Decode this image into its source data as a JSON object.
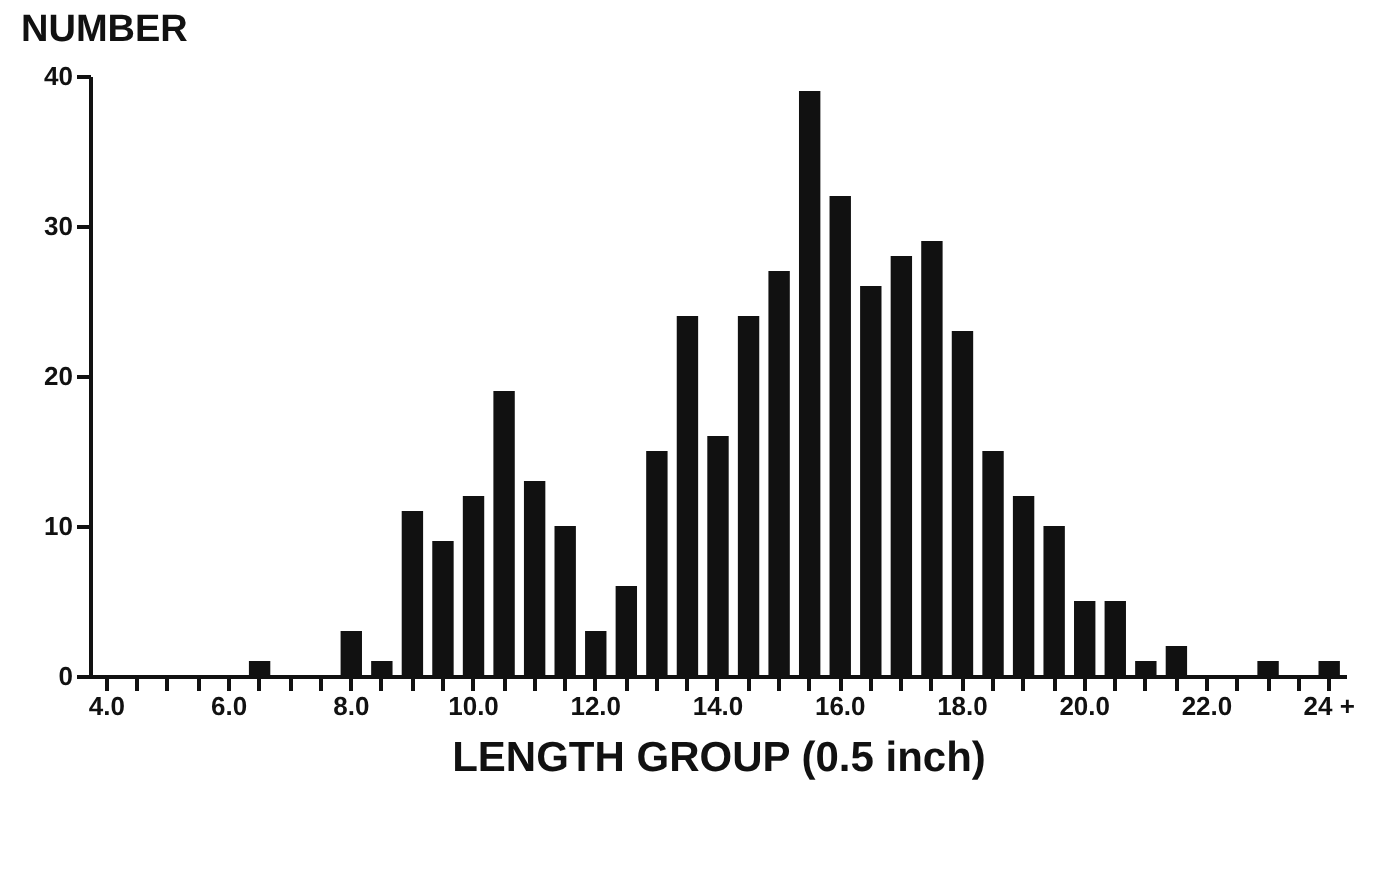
{
  "chart_data": {
    "type": "bar",
    "ylabel": "NUMBER",
    "xlabel": "LENGTH GROUP (0.5 inch)",
    "categories": [
      "4.0",
      null,
      null,
      null,
      "6.0",
      null,
      null,
      null,
      "8.0",
      null,
      null,
      null,
      "10.0",
      null,
      null,
      null,
      "12.0",
      null,
      null,
      null,
      "14.0",
      null,
      null,
      null,
      "16.0",
      null,
      null,
      null,
      "18.0",
      null,
      null,
      null,
      "20.0",
      null,
      null,
      null,
      "22.0",
      null,
      null,
      null,
      "24 +"
    ],
    "values": [
      0,
      0,
      0,
      0,
      0,
      1,
      0,
      0,
      3,
      1,
      11,
      9,
      12,
      19,
      13,
      10,
      3,
      6,
      15,
      24,
      16,
      24,
      27,
      39,
      32,
      26,
      28,
      29,
      23,
      15,
      12,
      10,
      5,
      5,
      1,
      2,
      0,
      0,
      1,
      0,
      1
    ],
    "color": "#111111",
    "ylim": [
      0,
      40
    ],
    "yticks": [
      0,
      10,
      20,
      30,
      40
    ],
    "grid": false
  }
}
